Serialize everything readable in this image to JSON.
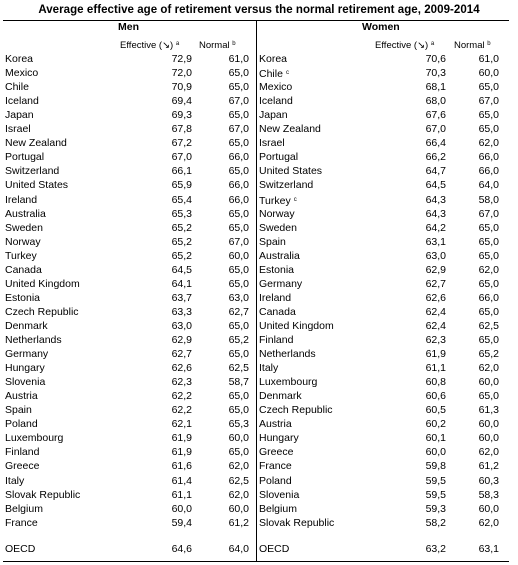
{
  "title": "Average effective age of retirement versus the normal retirement age, 2009-2014",
  "men": {
    "label": "Men",
    "col_effective": "Effective (↘)",
    "col_effective_sup": "a",
    "col_normal": "Normal",
    "col_normal_sup": "b",
    "rows": [
      {
        "country": "Korea",
        "effective": "72,9",
        "normal": "61,0"
      },
      {
        "country": "Mexico",
        "effective": "72,0",
        "normal": "65,0"
      },
      {
        "country": "Chile",
        "effective": "70,9",
        "normal": "65,0"
      },
      {
        "country": "Iceland",
        "effective": "69,4",
        "normal": "67,0"
      },
      {
        "country": "Japan",
        "effective": "69,3",
        "normal": "65,0"
      },
      {
        "country": "Israel",
        "effective": "67,8",
        "normal": "67,0"
      },
      {
        "country": "New Zealand",
        "effective": "67,2",
        "normal": "65,0"
      },
      {
        "country": "Portugal",
        "effective": "67,0",
        "normal": "66,0"
      },
      {
        "country": "Switzerland",
        "effective": "66,1",
        "normal": "65,0"
      },
      {
        "country": "United States",
        "effective": "65,9",
        "normal": "66,0"
      },
      {
        "country": "Ireland",
        "effective": "65,4",
        "normal": "66,0"
      },
      {
        "country": "Australia",
        "effective": "65,3",
        "normal": "65,0"
      },
      {
        "country": "Sweden",
        "effective": "65,2",
        "normal": "65,0"
      },
      {
        "country": "Norway",
        "effective": "65,2",
        "normal": "67,0"
      },
      {
        "country": "Turkey",
        "effective": "65,2",
        "normal": "60,0"
      },
      {
        "country": "Canada",
        "effective": "64,5",
        "normal": "65,0"
      },
      {
        "country": "United Kingdom",
        "effective": "64,1",
        "normal": "65,0"
      },
      {
        "country": "Estonia",
        "effective": "63,7",
        "normal": "63,0"
      },
      {
        "country": "Czech Republic",
        "effective": "63,3",
        "normal": "62,7"
      },
      {
        "country": "Denmark",
        "effective": "63,0",
        "normal": "65,0"
      },
      {
        "country": "Netherlands",
        "effective": "62,9",
        "normal": "65,2"
      },
      {
        "country": "Germany",
        "effective": "62,7",
        "normal": "65,0"
      },
      {
        "country": "Hungary",
        "effective": "62,6",
        "normal": "62,5"
      },
      {
        "country": "Slovenia",
        "effective": "62,3",
        "normal": "58,7"
      },
      {
        "country": "Austria",
        "effective": "62,2",
        "normal": "65,0"
      },
      {
        "country": "Spain",
        "effective": "62,2",
        "normal": "65,0"
      },
      {
        "country": "Poland",
        "effective": "62,1",
        "normal": "65,3"
      },
      {
        "country": "Luxembourg",
        "effective": "61,9",
        "normal": "60,0"
      },
      {
        "country": "Finland",
        "effective": "61,9",
        "normal": "65,0"
      },
      {
        "country": "Greece",
        "effective": "61,6",
        "normal": "62,0"
      },
      {
        "country": "Italy",
        "effective": "61,4",
        "normal": "62,5"
      },
      {
        "country": "Slovak Republic",
        "effective": "61,1",
        "normal": "62,0"
      },
      {
        "country": "Belgium",
        "effective": "60,0",
        "normal": "60,0"
      },
      {
        "country": "France",
        "effective": "59,4",
        "normal": "61,2"
      }
    ],
    "oecd": {
      "country": "OECD",
      "effective": "64,6",
      "normal": "64,0"
    }
  },
  "women": {
    "label": "Women",
    "col_effective": "Effective (↘)",
    "col_effective_sup": "a",
    "col_normal": "Normal",
    "col_normal_sup": "b",
    "rows": [
      {
        "country": "Korea",
        "effective": "70,6",
        "normal": "61,0"
      },
      {
        "country": "Chile",
        "sup": "c",
        "effective": "70,3",
        "normal": "60,0"
      },
      {
        "country": "Mexico",
        "effective": "68,1",
        "normal": "65,0"
      },
      {
        "country": "Iceland",
        "effective": "68,0",
        "normal": "67,0"
      },
      {
        "country": "Japan",
        "effective": "67,6",
        "normal": "65,0"
      },
      {
        "country": "New Zealand",
        "effective": "67,0",
        "normal": "65,0"
      },
      {
        "country": "Israel",
        "effective": "66,4",
        "normal": "62,0"
      },
      {
        "country": "Portugal",
        "effective": "66,2",
        "normal": "66,0"
      },
      {
        "country": "United States",
        "effective": "64,7",
        "normal": "66,0"
      },
      {
        "country": "Switzerland",
        "effective": "64,5",
        "normal": "64,0"
      },
      {
        "country": "Turkey",
        "sup": "c",
        "effective": "64,3",
        "normal": "58,0"
      },
      {
        "country": "Norway",
        "effective": "64,3",
        "normal": "67,0"
      },
      {
        "country": "Sweden",
        "effective": "64,2",
        "normal": "65,0"
      },
      {
        "country": "Spain",
        "effective": "63,1",
        "normal": "65,0"
      },
      {
        "country": "Australia",
        "effective": "63,0",
        "normal": "65,0"
      },
      {
        "country": "Estonia",
        "effective": "62,9",
        "normal": "62,0"
      },
      {
        "country": "Germany",
        "effective": "62,7",
        "normal": "65,0"
      },
      {
        "country": "Ireland",
        "effective": "62,6",
        "normal": "66,0"
      },
      {
        "country": "Canada",
        "effective": "62,4",
        "normal": "65,0"
      },
      {
        "country": "United Kingdom",
        "effective": "62,4",
        "normal": "62,5"
      },
      {
        "country": "Finland",
        "effective": "62,3",
        "normal": "65,0"
      },
      {
        "country": "Netherlands",
        "effective": "61,9",
        "normal": "65,2"
      },
      {
        "country": "Italy",
        "effective": "61,1",
        "normal": "62,0"
      },
      {
        "country": "Luxembourg",
        "effective": "60,8",
        "normal": "60,0"
      },
      {
        "country": "Denmark",
        "effective": "60,6",
        "normal": "65,0"
      },
      {
        "country": "Czech Republic",
        "effective": "60,5",
        "normal": "61,3"
      },
      {
        "country": "Austria",
        "effective": "60,2",
        "normal": "60,0"
      },
      {
        "country": "Hungary",
        "effective": "60,1",
        "normal": "60,0"
      },
      {
        "country": "Greece",
        "effective": "60,0",
        "normal": "62,0"
      },
      {
        "country": "France",
        "effective": "59,8",
        "normal": "61,2"
      },
      {
        "country": "Poland",
        "effective": "59,5",
        "normal": "60,3"
      },
      {
        "country": "Slovenia",
        "effective": "59,5",
        "normal": "58,3"
      },
      {
        "country": "Belgium",
        "effective": "59,3",
        "normal": "60,0"
      },
      {
        "country": "Slovak Republic",
        "effective": "58,2",
        "normal": "62,0"
      }
    ],
    "oecd": {
      "country": "OECD",
      "effective": "63,2",
      "normal": "63,1"
    }
  }
}
